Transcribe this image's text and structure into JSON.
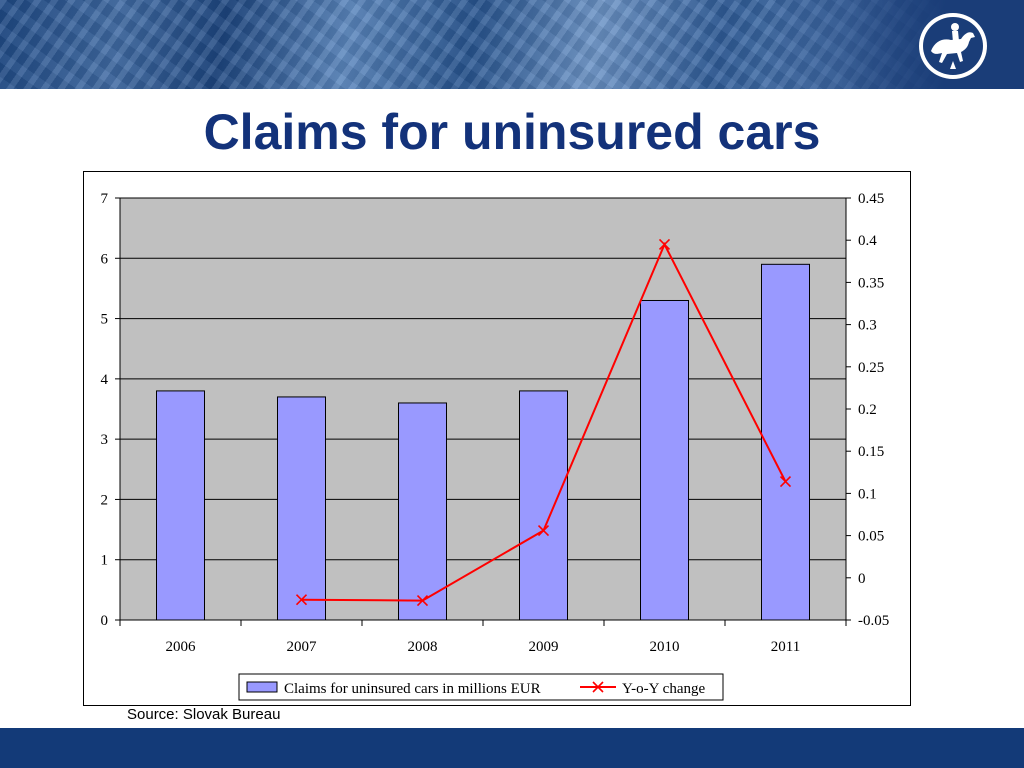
{
  "slide": {
    "title": "Claims for uninsured cars",
    "source": "Source: Slovak Bureau",
    "colors": {
      "title": "#13327a",
      "footer": "#133a78",
      "plot_bg": "#c0c0c0",
      "bar": "#9999ff",
      "line": "#ff0000"
    },
    "logo_icon": "horse-rider-logo-icon"
  },
  "chart_data": {
    "type": "bar",
    "categories": [
      "2006",
      "2007",
      "2008",
      "2009",
      "2010",
      "2011"
    ],
    "series": [
      {
        "name": "Claims for uninsured cars in millions EUR",
        "type": "bar",
        "axis": "left",
        "values": [
          3.8,
          3.7,
          3.6,
          3.8,
          5.3,
          5.9
        ]
      },
      {
        "name": "Y-o-Y change",
        "type": "line",
        "axis": "right",
        "values": [
          null,
          -0.026,
          -0.027,
          0.056,
          0.395,
          0.114
        ]
      }
    ],
    "y_left": {
      "min": 0,
      "max": 7,
      "ticks": [
        "0",
        "1",
        "2",
        "3",
        "4",
        "5",
        "6",
        "7"
      ]
    },
    "y_right": {
      "min": -0.05,
      "max": 0.45,
      "ticks": [
        "-0.05",
        "0",
        "0.05",
        "0.1",
        "0.15",
        "0.2",
        "0.25",
        "0.3",
        "0.35",
        "0.4",
        "0.45"
      ]
    },
    "grid": true,
    "legend": "bottom"
  }
}
